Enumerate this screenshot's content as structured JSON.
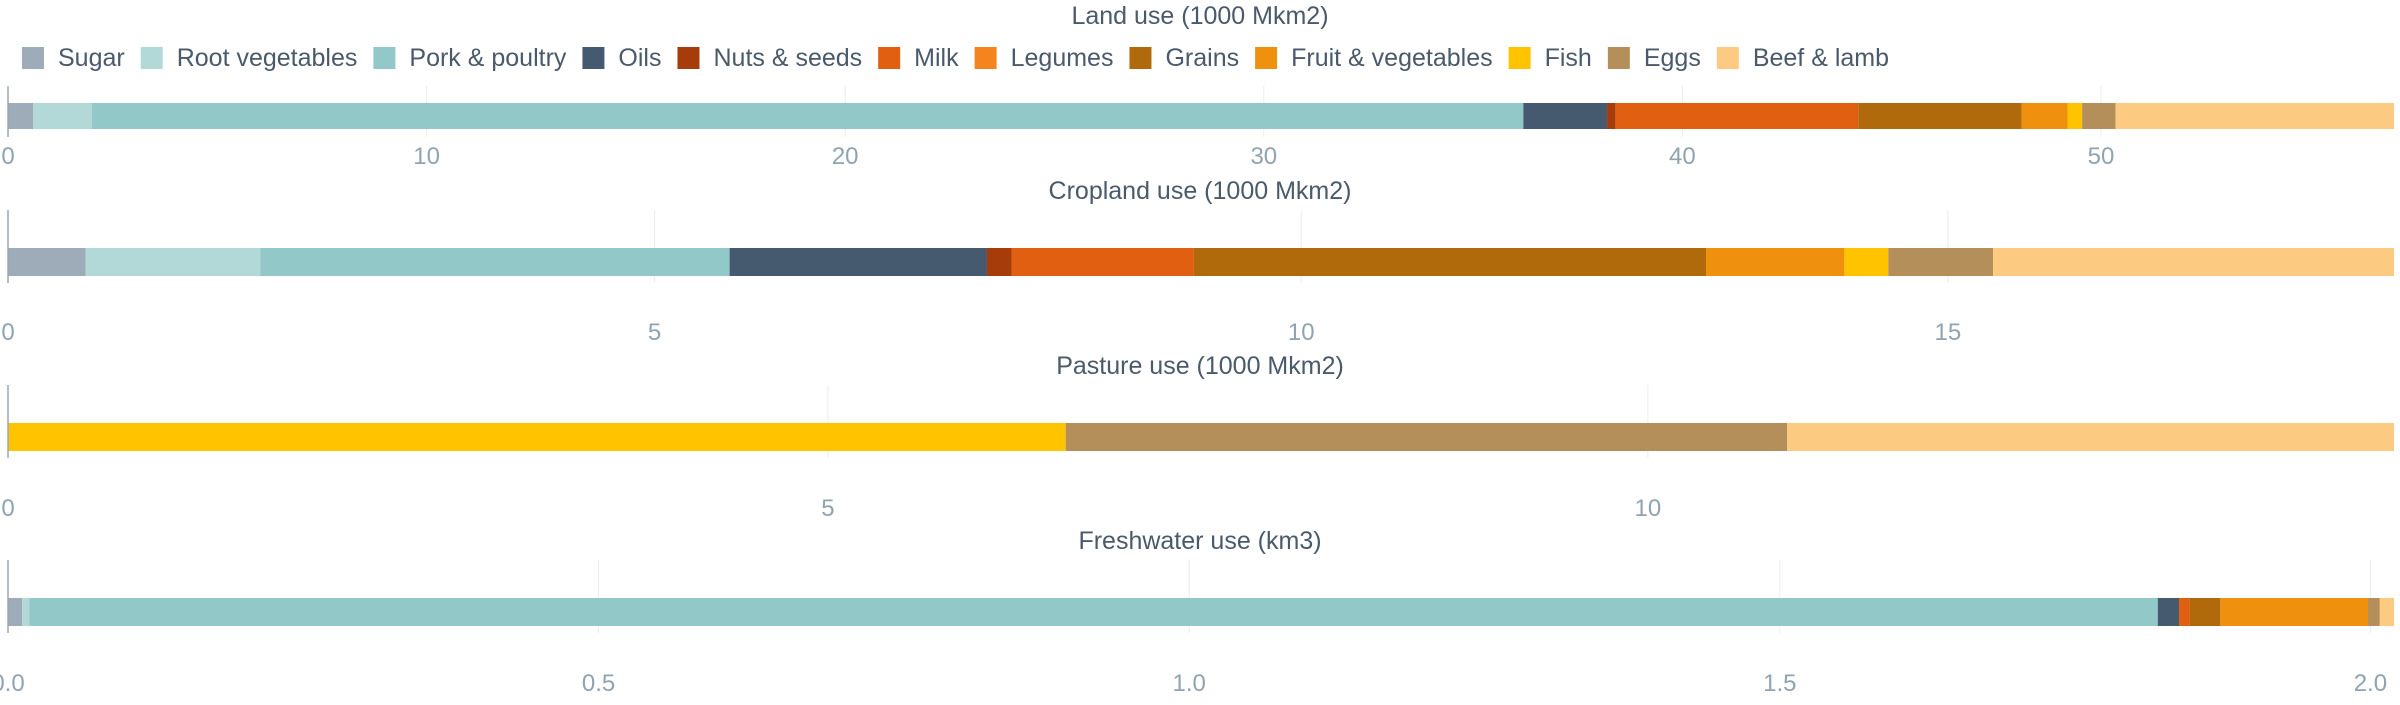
{
  "legend": [
    {
      "label": "Sugar",
      "color": "#9eabb8"
    },
    {
      "label": "Root vegetables",
      "color": "#b2d8d8"
    },
    {
      "label": "Pork & poultry",
      "color": "#92c8c8"
    },
    {
      "label": "Oils",
      "color": "#455a6f"
    },
    {
      "label": "Nuts & seeds",
      "color": "#a53c0a"
    },
    {
      "label": "Milk",
      "color": "#e05f10"
    },
    {
      "label": "Legumes",
      "color": "#f5841f"
    },
    {
      "label": "Grains",
      "color": "#b0690b"
    },
    {
      "label": "Fruit & vegetables",
      "color": "#f0900f"
    },
    {
      "label": "Fish",
      "color": "#ffc300"
    },
    {
      "label": "Eggs",
      "color": "#b58f5a"
    },
    {
      "label": "Beef & lamb",
      "color": "#fdca82"
    }
  ],
  "chart_data": [
    {
      "type": "bar",
      "orientation": "horizontal-stacked",
      "title": "Land use (1000 Mkm2)",
      "xlim": [
        0,
        57
      ],
      "ticks": [
        0,
        10,
        20,
        30,
        40,
        50
      ],
      "tick_labels": [
        "0",
        "10",
        "20",
        "30",
        "40",
        "50"
      ],
      "segments": [
        {
          "name": "Sugar",
          "value": 0.6
        },
        {
          "name": "Root vegetables",
          "value": 1.4
        },
        {
          "name": "Pork & poultry",
          "value": 34.2
        },
        {
          "name": "Oils",
          "value": 2.0
        },
        {
          "name": "Nuts & seeds",
          "value": 0.2
        },
        {
          "name": "Milk",
          "value": 5.8
        },
        {
          "name": "Grains",
          "value": 3.9
        },
        {
          "name": "Fruit & vegetables",
          "value": 1.1
        },
        {
          "name": "Fish",
          "value": 0.35
        },
        {
          "name": "Eggs",
          "value": 0.8
        },
        {
          "name": "Beef & lamb",
          "value": 6.65
        }
      ]
    },
    {
      "type": "bar",
      "orientation": "horizontal-stacked",
      "title": "Cropland use (1000 Mkm2)",
      "xlim": [
        0,
        18.45
      ],
      "ticks": [
        0,
        5,
        10,
        15
      ],
      "tick_labels": [
        "0",
        "5",
        "10",
        "15"
      ],
      "segments": [
        {
          "name": "Sugar",
          "value": 0.6
        },
        {
          "name": "Root vegetables",
          "value": 1.35
        },
        {
          "name": "Pork & poultry",
          "value": 3.63
        },
        {
          "name": "Oils",
          "value": 1.99
        },
        {
          "name": "Nuts & seeds",
          "value": 0.19
        },
        {
          "name": "Milk",
          "value": 1.41
        },
        {
          "name": "Grains",
          "value": 3.96
        },
        {
          "name": "Fruit & vegetables",
          "value": 1.07
        },
        {
          "name": "Fish",
          "value": 0.34
        },
        {
          "name": "Eggs",
          "value": 0.81
        },
        {
          "name": "Beef & lamb",
          "value": 3.1
        }
      ]
    },
    {
      "type": "bar",
      "orientation": "horizontal-stacked",
      "title": "Pasture use (1000 Mkm2)",
      "xlim": [
        0,
        14.55
      ],
      "ticks": [
        0,
        5,
        10
      ],
      "tick_labels": [
        "0",
        "5",
        "10"
      ],
      "segments": [
        {
          "name": "Fish",
          "value": 6.45
        },
        {
          "name": "Eggs",
          "value": 4.4
        },
        {
          "name": "Beef & lamb",
          "value": 3.7
        }
      ]
    },
    {
      "type": "bar",
      "orientation": "horizontal-stacked",
      "title": "Freshwater use (km3)",
      "xlim": [
        0,
        2.02
      ],
      "ticks": [
        0,
        0.5,
        1.0,
        1.5,
        2.0
      ],
      "tick_labels": [
        "0.0",
        "0.5",
        "1.0",
        "1.5",
        "2.0"
      ],
      "segments": [
        {
          "name": "Sugar",
          "value": 0.012
        },
        {
          "name": "Root vegetables",
          "value": 0.006
        },
        {
          "name": "Pork & poultry",
          "value": 1.802
        },
        {
          "name": "Oils",
          "value": 0.018
        },
        {
          "name": "Milk",
          "value": 0.009
        },
        {
          "name": "Grains",
          "value": 0.026
        },
        {
          "name": "Fruit & vegetables",
          "value": 0.125
        },
        {
          "name": "Eggs",
          "value": 0.01
        },
        {
          "name": "Beef & lamb",
          "value": 0.012
        }
      ]
    }
  ]
}
